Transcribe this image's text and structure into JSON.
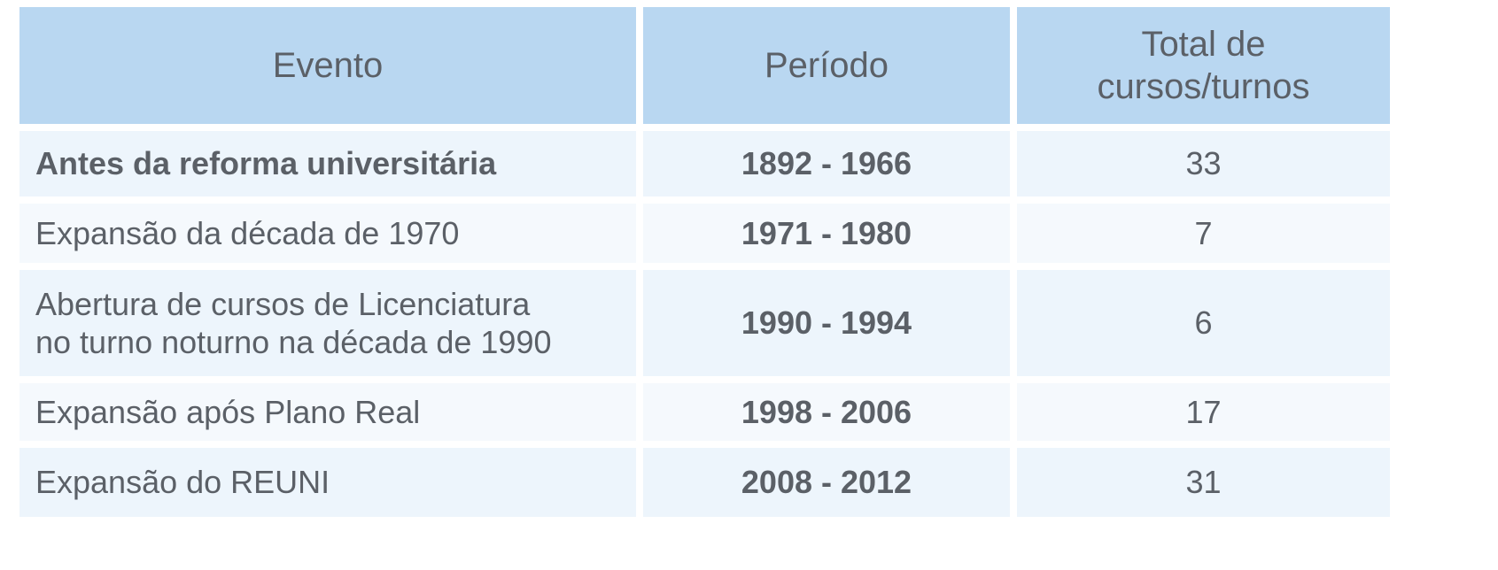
{
  "table": {
    "header": [
      "Evento",
      "Período",
      "Total de\ncursos/turnos"
    ],
    "rows": [
      [
        "Antes da reforma universitária",
        "1892 - 1966",
        33
      ],
      [
        "Expansão da década de 1970",
        "1971 - 1980",
        7
      ],
      [
        "Abertura de cursos de Licenciatura\nno turno noturno na década de 1990",
        "1990 - 1994",
        6
      ],
      [
        "Expansão após Plano Real",
        "1998 - 2006",
        17
      ],
      [
        "Expansão do REUNI",
        "2008 - 2012",
        31
      ]
    ]
  }
}
